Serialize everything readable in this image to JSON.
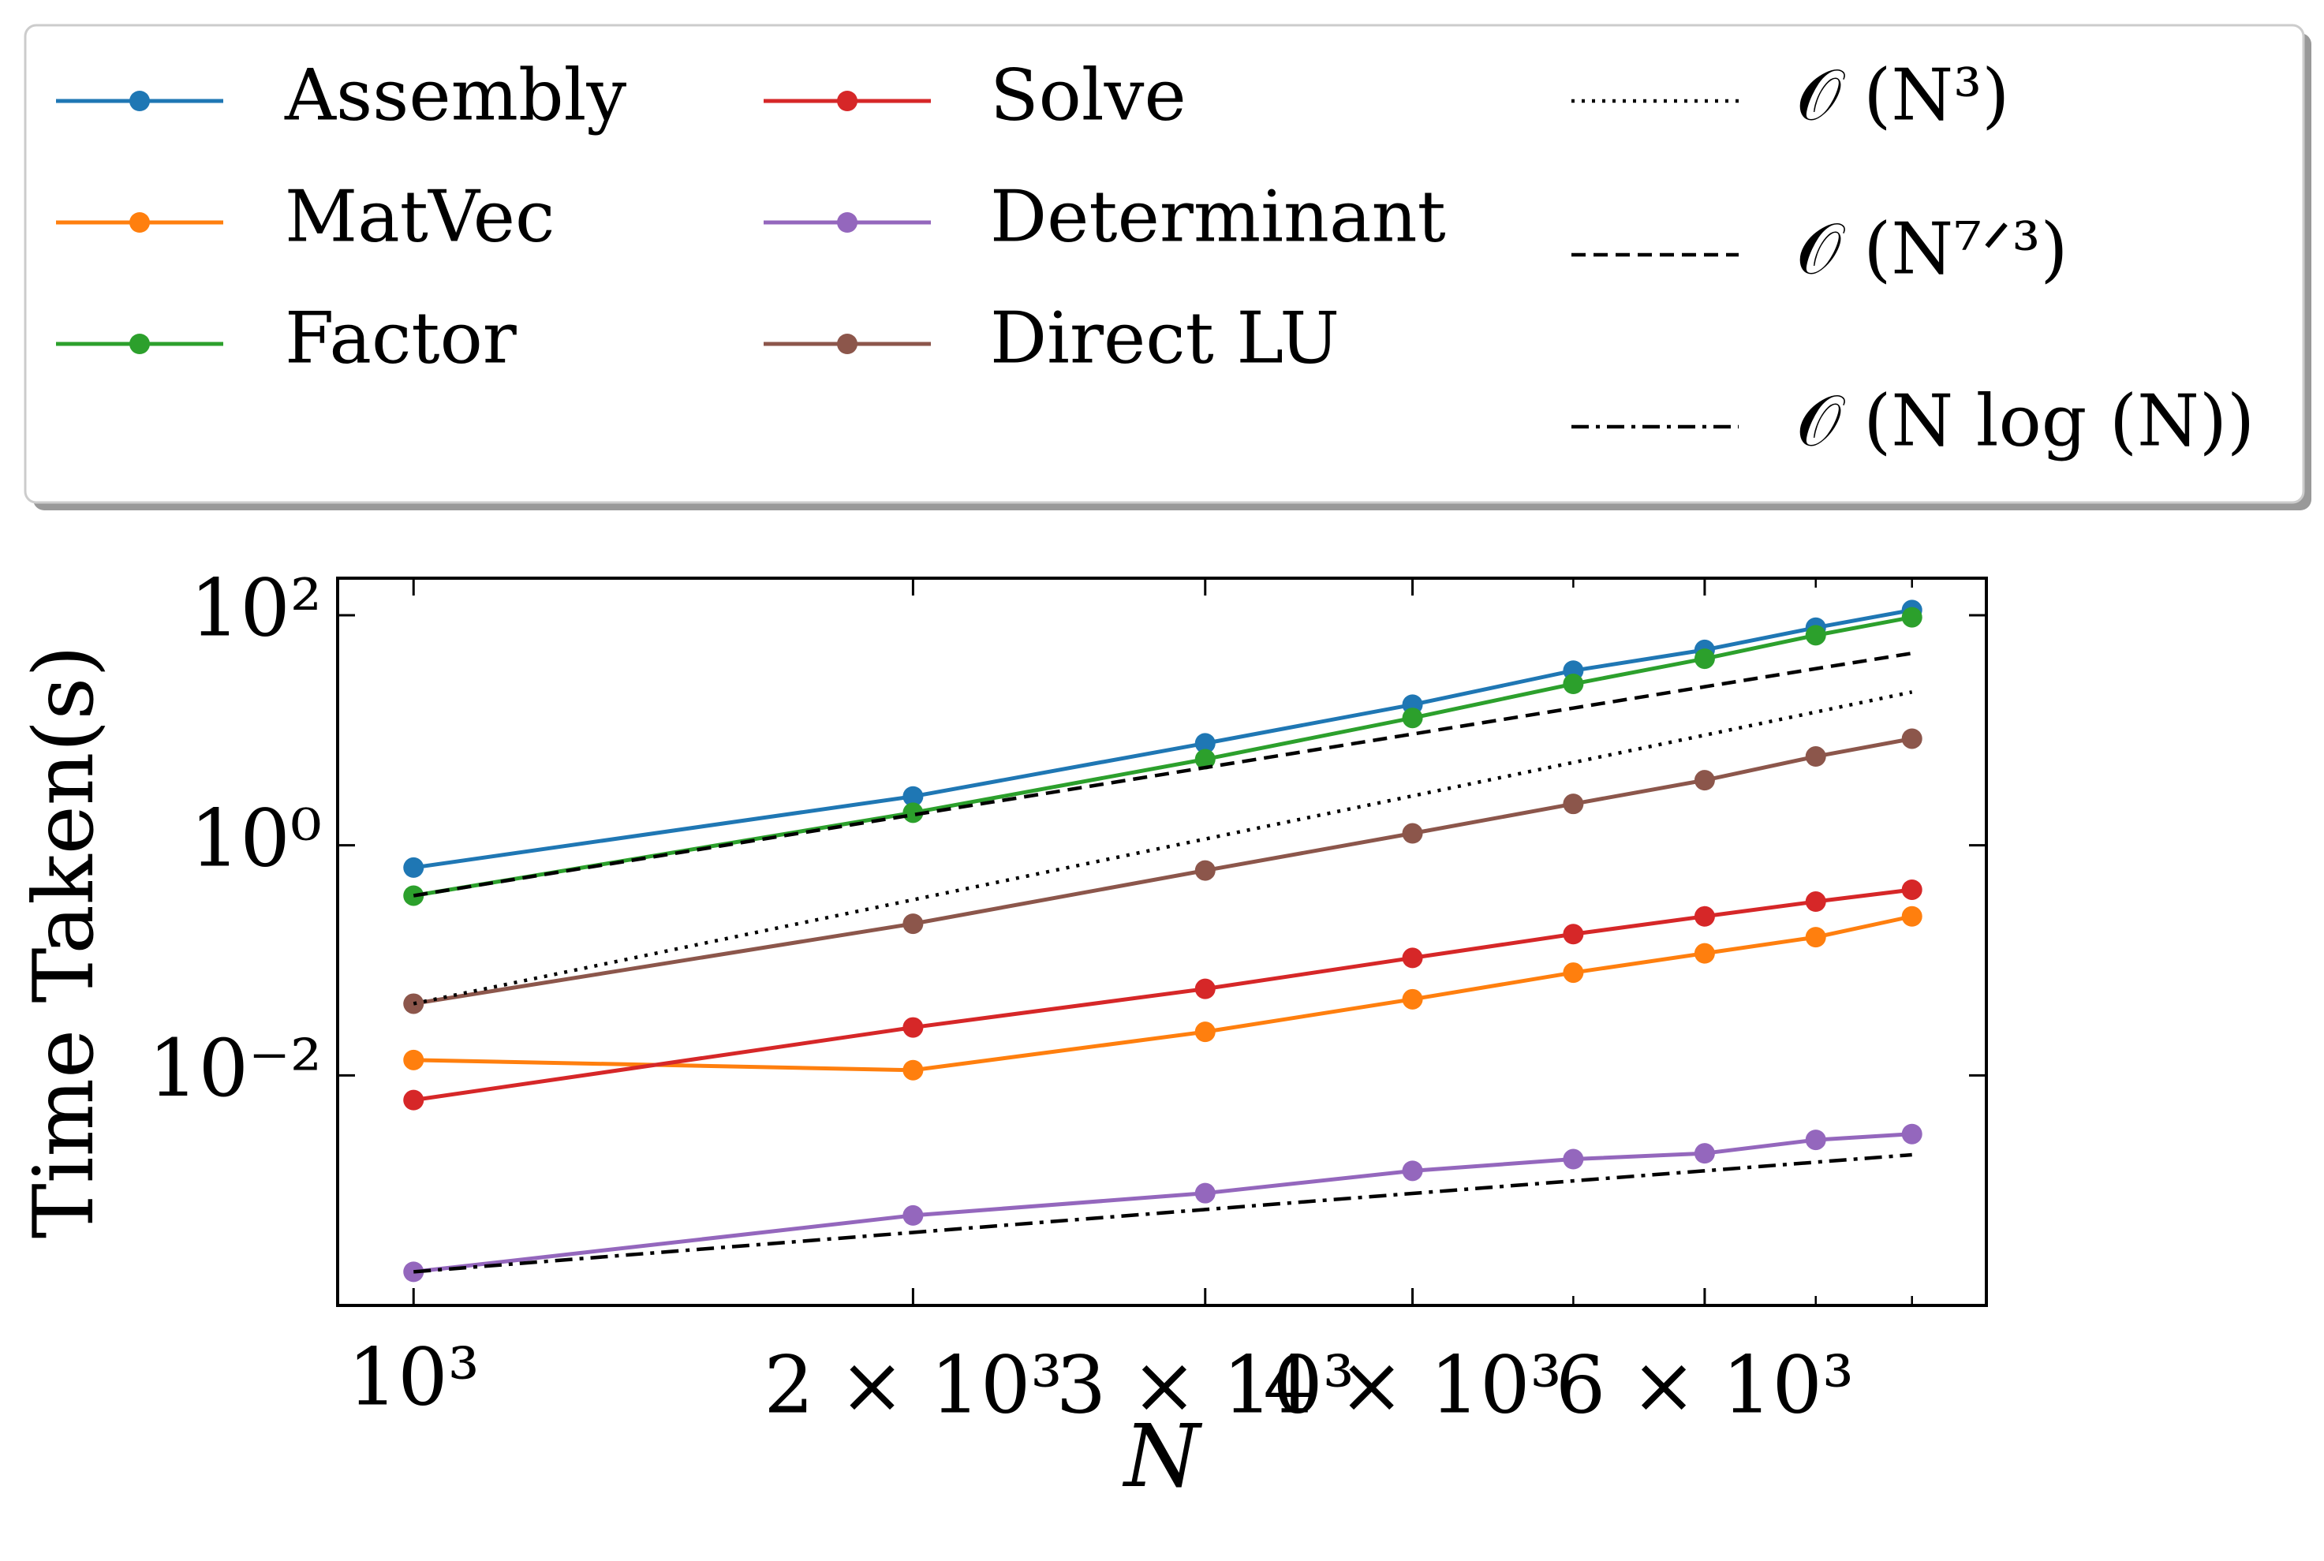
{
  "chart_data": {
    "type": "line",
    "xlabel": "N",
    "ylabel": "Time Taken(s)",
    "xscale": "log",
    "yscale": "log",
    "x": [
      1000,
      2000,
      3000,
      4000,
      5000,
      6000,
      7000,
      8000
    ],
    "xlim": [
      900,
      8870
    ],
    "ylim": [
      0.0001,
      210
    ],
    "xticks": [
      {
        "value": 1000,
        "label": "10³"
      },
      {
        "value": 2000,
        "label": "2 × 10³"
      },
      {
        "value": 3000,
        "label": "3 × 10³"
      },
      {
        "value": 4000,
        "label": "4 × 10³"
      },
      {
        "value": 6000,
        "label": "6 × 10³"
      }
    ],
    "xminor_ticks": [
      5000,
      7000,
      8000
    ],
    "yticks": [
      {
        "value": 100,
        "label": "10²"
      },
      {
        "value": 1,
        "label": "10⁰"
      },
      {
        "value": 0.01,
        "label": "10⁻²"
      }
    ],
    "legend": "top",
    "series": [
      {
        "name": "Assembly",
        "color": "#1f77b4",
        "marker": true,
        "values": [
          0.64,
          2.66,
          7.7,
          16.7,
          33,
          50,
          78,
          111
        ]
      },
      {
        "name": "MatVec",
        "color": "#ff7f0e",
        "marker": true,
        "values": [
          0.0136,
          0.0111,
          0.0239,
          0.0459,
          0.0782,
          0.115,
          0.159,
          0.241
        ]
      },
      {
        "name": "Factor",
        "color": "#2ca02c",
        "marker": true,
        "values": [
          0.365,
          1.92,
          5.6,
          12.8,
          25.3,
          41.9,
          67,
          96
        ]
      },
      {
        "name": "Solve",
        "color": "#d62728",
        "marker": true,
        "values": [
          0.0061,
          0.0261,
          0.0565,
          0.105,
          0.169,
          0.241,
          0.324,
          0.411
        ]
      },
      {
        "name": "Determinant",
        "color": "#9467bd",
        "marker": true,
        "values": [
          0.000196,
          0.000606,
          0.000946,
          0.00148,
          0.00187,
          0.0021,
          0.00275,
          0.00309
        ]
      },
      {
        "name": "Direct LU",
        "color": "#8c564b",
        "marker": true,
        "values": [
          0.042,
          0.208,
          0.604,
          1.27,
          2.29,
          3.68,
          5.92,
          8.45
        ]
      },
      {
        "name": "𝒪 (N³)",
        "color": "#000000",
        "marker": false,
        "dash": "dotted",
        "values": [
          0.042,
          0.336,
          1.134,
          2.688,
          5.25,
          9.072,
          14.406,
          21.504
        ]
      },
      {
        "name": "𝒪 (N⁷ᐟ³)",
        "color": "#000000",
        "marker": false,
        "dash": "dashed",
        "values": [
          0.365,
          1.84,
          4.74,
          9.27,
          15.6,
          23.9,
          34.3,
          46.7
        ]
      },
      {
        "name": "𝒪 (N log (N))",
        "color": "#000000",
        "marker": false,
        "dash": "dashdot",
        "values": [
          0.000196,
          0.000431,
          0.000682,
          0.000941,
          0.00121,
          0.00148,
          0.00176,
          0.00204
        ]
      }
    ]
  }
}
